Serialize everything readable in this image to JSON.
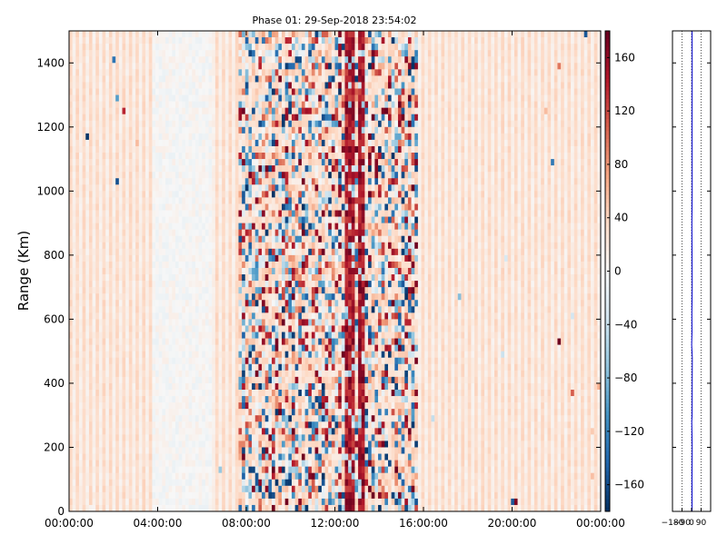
{
  "chart_data": [
    {
      "type": "heatmap",
      "title": "Phase 01: 29-Sep-2018 23:54:02",
      "xlabel": "",
      "ylabel": "Range (Km)",
      "x_ticks": [
        "00:00:00",
        "04:00:00",
        "08:00:00",
        "12:00:00",
        "16:00:00",
        "20:00:00",
        "00:00:00"
      ],
      "xlim": [
        "00:00:00",
        "00:00:00 (+24h)"
      ],
      "y_ticks": [
        0,
        200,
        400,
        600,
        800,
        1000,
        1200,
        1400
      ],
      "ylim": [
        0,
        1500
      ],
      "colorbar": {
        "ticks": [
          160,
          120,
          80,
          40,
          0,
          -40,
          -80,
          -120,
          -160
        ],
        "range": [
          -180,
          180
        ],
        "colormap": "RdBu_r",
        "colors": [
          "#053061",
          "#2166ac",
          "#4393c3",
          "#92c5de",
          "#d1e5f0",
          "#f7f7f7",
          "#fddbc7",
          "#f4a582",
          "#d6604d",
          "#b2182b",
          "#67001f"
        ]
      },
      "grid": false,
      "description_of_values": "Phase in degrees. Mostly weak positive (+20 to +40) across all ranges; near-zero band around 04:00-06:30; highly noisy values spanning -180..180 between about 07:40 and 15:50, with persistent strong positive columns near 12:40-13:20.",
      "noisy_interval_hours": [
        7.7,
        15.8
      ],
      "strong_positive_columns_hours": [
        12.6,
        12.8,
        13.1,
        13.3
      ]
    },
    {
      "type": "line",
      "x_ticks": [
        "-180",
        "-90",
        "0",
        "90"
      ],
      "xlim": [
        -180,
        180
      ],
      "ylim": [
        0,
        1500
      ],
      "grid": true,
      "series_color": "#0000cc",
      "profile_points": [
        [
          5,
          0
        ],
        [
          4,
          100
        ],
        [
          6,
          200
        ],
        [
          2,
          280
        ],
        [
          5,
          300
        ],
        [
          6,
          400
        ],
        [
          7,
          480
        ],
        [
          1,
          520
        ],
        [
          4,
          560
        ],
        [
          3,
          620
        ],
        [
          6,
          700
        ],
        [
          3,
          900
        ],
        [
          6,
          1000
        ],
        [
          5,
          1200
        ],
        [
          6,
          1400
        ],
        [
          5,
          1500
        ]
      ]
    }
  ]
}
